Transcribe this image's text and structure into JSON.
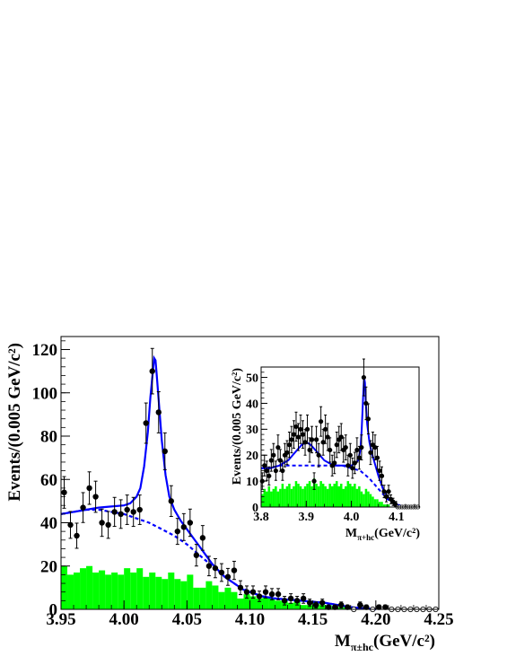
{
  "chart_data": [
    {
      "type": "scatter",
      "xlabel": "M",
      "xlabel_sub": "π±hc",
      "xlabel_unit": "(GeV/c²)",
      "ylabel": "Events/(0.005 GeV/c²)",
      "xlim": [
        3.95,
        4.25
      ],
      "ylim": [
        0,
        126
      ],
      "x_ticks": [
        "3.95",
        "4.00",
        "4.05",
        "4.10",
        "4.15",
        "4.20",
        "4.25"
      ],
      "x_tick_values": [
        3.95,
        4.0,
        4.05,
        4.1,
        4.15,
        4.2,
        4.25
      ],
      "y_ticks": [
        "0",
        "20",
        "40",
        "60",
        "80",
        "100",
        "120"
      ],
      "y_tick_values": [
        0,
        20,
        40,
        60,
        80,
        100,
        120
      ],
      "grid": false,
      "data_points": {
        "x": [
          3.9525,
          3.9575,
          3.9625,
          3.9675,
          3.9725,
          3.9775,
          3.9825,
          3.9875,
          3.9925,
          3.9975,
          4.0025,
          4.0075,
          4.0125,
          4.0175,
          4.0225,
          4.0275,
          4.0325,
          4.0375,
          4.0425,
          4.0475,
          4.0525,
          4.0575,
          4.0625,
          4.0675,
          4.0725,
          4.0775,
          4.0825,
          4.0875,
          4.0925,
          4.0975,
          4.1025,
          4.1075,
          4.1125,
          4.1175,
          4.1225,
          4.1275,
          4.1325,
          4.1375,
          4.1425,
          4.1475,
          4.1525,
          4.1575,
          4.1625,
          4.1675,
          4.1725,
          4.1775,
          4.1825,
          4.1875,
          4.1925,
          4.1975,
          4.2025,
          4.2075,
          4.2125,
          4.2175,
          4.2225,
          4.2275,
          4.2325,
          4.2375,
          4.2425,
          4.2475
        ],
        "y": [
          54,
          39,
          34,
          47,
          56,
          52,
          40,
          39,
          45,
          44,
          46,
          45,
          46,
          86,
          110,
          91,
          73,
          50,
          36,
          38,
          40,
          25,
          33,
          20,
          19,
          17,
          15,
          18,
          10,
          8,
          8,
          6,
          8,
          7,
          7,
          4,
          5,
          4,
          5,
          3,
          2,
          3,
          1,
          1,
          2,
          1,
          0,
          2,
          1,
          0,
          1,
          1,
          0,
          0,
          0,
          0,
          0,
          0,
          0,
          0
        ],
        "yerr": [
          7.3,
          6.2,
          5.8,
          6.9,
          7.5,
          7.2,
          6.3,
          6.2,
          6.7,
          6.6,
          6.8,
          6.7,
          6.8,
          9.3,
          10.5,
          9.5,
          8.5,
          7.1,
          6.0,
          6.2,
          6.3,
          5.0,
          5.7,
          4.5,
          4.4,
          4.1,
          3.9,
          4.2,
          3.2,
          2.8,
          2.8,
          2.4,
          2.8,
          2.6,
          2.6,
          2.0,
          2.2,
          2.0,
          2.2,
          1.7,
          1.4,
          1.7,
          1.0,
          1.0,
          1.4,
          1.0,
          0,
          1.4,
          1.0,
          0,
          1.0,
          1.0,
          0,
          0,
          0,
          0,
          0,
          0,
          0,
          0
        ]
      },
      "fit_total": {
        "x": [
          3.95,
          3.96,
          3.97,
          3.98,
          3.99,
          4.0,
          4.005,
          4.01,
          4.013,
          4.016,
          4.019,
          4.021,
          4.023,
          4.024,
          4.025,
          4.026,
          4.028,
          4.03,
          4.033,
          4.036,
          4.04,
          4.045,
          4.05,
          4.055,
          4.06,
          4.065,
          4.07,
          4.075,
          4.08,
          4.085,
          4.09,
          4.095,
          4.1,
          4.11,
          4.12,
          4.13,
          4.14,
          4.15,
          4.16,
          4.17,
          4.18,
          4.19,
          4.2
        ],
        "y": [
          44,
          45,
          46,
          47,
          47.5,
          48,
          49,
          52,
          56,
          66,
          82,
          98,
          110,
          116,
          115,
          108,
          93,
          78,
          62,
          52,
          46,
          41,
          37,
          33,
          29,
          25,
          21,
          18,
          15,
          13,
          11,
          9,
          8,
          6,
          5,
          4.5,
          4,
          3.5,
          3,
          2,
          1,
          0.5,
          0
        ]
      },
      "fit_background": {
        "x": [
          3.95,
          3.96,
          3.97,
          3.98,
          3.99,
          4.0,
          4.01,
          4.02,
          4.03,
          4.04,
          4.05,
          4.06,
          4.07,
          4.08,
          4.09,
          4.1,
          4.11,
          4.12,
          4.13,
          4.14,
          4.15,
          4.16,
          4.17,
          4.18,
          4.19,
          4.2
        ],
        "y": [
          44,
          45,
          46,
          46,
          45,
          44,
          42,
          40,
          37,
          34,
          30,
          25,
          20,
          15,
          11,
          8,
          6,
          5,
          4.5,
          4,
          3.5,
          3,
          2,
          1,
          0.5,
          0
        ]
      },
      "sideband_histogram": {
        "bin_width": 0.005,
        "bin_starts": [
          3.95,
          3.955,
          3.96,
          3.965,
          3.97,
          3.975,
          3.98,
          3.985,
          3.99,
          3.995,
          4.0,
          4.005,
          4.01,
          4.015,
          4.02,
          4.025,
          4.03,
          4.035,
          4.04,
          4.045,
          4.05,
          4.055,
          4.06,
          4.065,
          4.07,
          4.075,
          4.08,
          4.085,
          4.09,
          4.095,
          4.1,
          4.105,
          4.11,
          4.115,
          4.12,
          4.125,
          4.13,
          4.135,
          4.14,
          4.145,
          4.15,
          4.155,
          4.16,
          4.165,
          4.17,
          4.175,
          4.18,
          4.185,
          4.19,
          4.195
        ],
        "values": [
          20,
          16,
          17,
          19,
          20,
          17,
          18,
          16,
          17,
          16,
          19,
          17,
          19,
          15,
          17,
          15,
          14,
          17,
          14,
          13,
          16,
          10,
          10,
          13,
          11,
          8,
          10,
          8,
          5,
          7,
          6,
          5,
          6,
          5,
          4,
          4,
          3,
          4,
          2,
          2,
          3,
          2,
          2,
          1,
          1,
          1,
          0,
          1,
          0,
          0
        ]
      },
      "colors": {
        "data": "#000000",
        "fit_total": "#0000ff",
        "fit_background": "#0000ff",
        "sideband": "#00ff00"
      }
    },
    {
      "type": "scatter",
      "role": "inset",
      "xlabel": "M",
      "xlabel_sub": "π+hc",
      "xlabel_unit": "(GeV/c²)",
      "ylabel": "Events/(0.005 GeV/c²)",
      "xlim": [
        3.8,
        4.15
      ],
      "ylim": [
        0,
        54
      ],
      "x_ticks": [
        "3.8",
        "3.9",
        "4.0",
        "4.1"
      ],
      "x_tick_values": [
        3.8,
        3.9,
        4.0,
        4.1
      ],
      "y_ticks": [
        "0",
        "10",
        "20",
        "30",
        "40",
        "50"
      ],
      "y_tick_values": [
        0,
        10,
        20,
        30,
        40,
        50
      ],
      "grid": false,
      "data_points": {
        "x": [
          3.8025,
          3.8075,
          3.8125,
          3.8175,
          3.8225,
          3.8275,
          3.8325,
          3.8375,
          3.8425,
          3.8475,
          3.8525,
          3.8575,
          3.8625,
          3.8675,
          3.8725,
          3.8775,
          3.8825,
          3.8875,
          3.8925,
          3.8975,
          3.9025,
          3.9075,
          3.9125,
          3.9175,
          3.9225,
          3.9275,
          3.9325,
          3.9375,
          3.9425,
          3.9475,
          3.9525,
          3.9575,
          3.9625,
          3.9675,
          3.9725,
          3.9775,
          3.9825,
          3.9875,
          3.9925,
          3.9975,
          4.0025,
          4.0075,
          4.0125,
          4.0175,
          4.0225,
          4.0275,
          4.0325,
          4.0375,
          4.0425,
          4.0475,
          4.0525,
          4.0575,
          4.0625,
          4.0675,
          4.0725,
          4.0775,
          4.0825,
          4.0875,
          4.0925,
          4.0975,
          4.1025,
          4.1075,
          4.1125,
          4.1175,
          4.1225,
          4.1275,
          4.1325,
          4.1375,
          4.1425,
          4.1475
        ],
        "y": [
          10,
          16,
          14,
          12,
          18,
          20,
          14,
          23,
          18,
          14,
          20,
          21,
          24,
          26,
          28,
          31,
          27,
          30,
          28,
          25,
          30,
          22,
          26,
          10,
          26,
          20,
          33,
          25,
          30,
          27,
          22,
          16,
          17,
          24,
          26,
          27,
          22,
          23,
          16,
          20,
          15,
          17,
          22,
          19,
          23,
          50,
          40,
          34,
          21,
          24,
          23,
          19,
          14,
          12,
          6,
          4,
          6,
          3,
          2,
          1,
          0,
          0,
          0,
          0,
          0,
          0,
          0,
          0,
          0,
          0
        ],
        "yerr": [
          3.2,
          4.0,
          3.7,
          3.5,
          4.2,
          4.5,
          3.7,
          4.8,
          4.2,
          3.7,
          4.5,
          4.6,
          4.9,
          5.1,
          5.3,
          5.6,
          5.2,
          5.5,
          5.3,
          5.0,
          5.5,
          4.7,
          5.1,
          3.2,
          5.1,
          4.5,
          5.7,
          5.0,
          5.5,
          5.2,
          4.7,
          4.0,
          4.1,
          4.9,
          5.1,
          5.2,
          4.7,
          4.8,
          4.0,
          4.5,
          3.9,
          4.1,
          4.7,
          4.4,
          4.8,
          7.1,
          6.3,
          5.8,
          4.6,
          4.9,
          4.8,
          4.4,
          3.7,
          3.5,
          2.4,
          2.0,
          2.4,
          1.7,
          1.4,
          1.0,
          0,
          0,
          0,
          0,
          0,
          0,
          0,
          0,
          0,
          0
        ]
      },
      "fit_total": {
        "x": [
          3.8,
          3.82,
          3.84,
          3.86,
          3.87,
          3.88,
          3.89,
          3.9,
          3.91,
          3.92,
          3.93,
          3.94,
          3.96,
          3.98,
          4.0,
          4.01,
          4.015,
          4.02,
          4.023,
          4.026,
          4.028,
          4.03,
          4.032,
          4.035,
          4.04,
          4.045,
          4.05,
          4.06,
          4.07,
          4.08,
          4.09,
          4.1,
          4.11,
          4.12
        ],
        "y": [
          15,
          15,
          16,
          18,
          20,
          22,
          24,
          25,
          24,
          22,
          20,
          18,
          16,
          16,
          16,
          17,
          18,
          22,
          30,
          42,
          50,
          48,
          40,
          32,
          25,
          21,
          18,
          12,
          7,
          4,
          2,
          1,
          0,
          0
        ]
      },
      "fit_background": {
        "x": [
          3.8,
          3.82,
          3.84,
          3.86,
          3.88,
          3.9,
          3.92,
          3.94,
          3.96,
          3.98,
          4.0,
          4.02,
          4.04,
          4.06,
          4.08,
          4.1,
          4.12
        ],
        "y": [
          15,
          15,
          16,
          16,
          16,
          16,
          16,
          16,
          16,
          16,
          15,
          14,
          11,
          7,
          3,
          1,
          0
        ]
      },
      "sideband_histogram": {
        "bin_width": 0.005,
        "bin_starts": [
          3.8,
          3.805,
          3.81,
          3.815,
          3.82,
          3.825,
          3.83,
          3.835,
          3.84,
          3.845,
          3.85,
          3.855,
          3.86,
          3.865,
          3.87,
          3.875,
          3.88,
          3.885,
          3.89,
          3.895,
          3.9,
          3.905,
          3.91,
          3.915,
          3.92,
          3.925,
          3.93,
          3.935,
          3.94,
          3.945,
          3.95,
          3.955,
          3.96,
          3.965,
          3.97,
          3.975,
          3.98,
          3.985,
          3.99,
          3.995,
          4.0,
          4.005,
          4.01,
          4.015,
          4.02,
          4.025,
          4.03,
          4.035,
          4.04,
          4.045,
          4.05,
          4.055,
          4.06,
          4.065,
          4.07,
          4.075,
          4.08,
          4.085,
          4.09,
          4.095,
          4.1
        ],
        "values": [
          5,
          7,
          6,
          8,
          6,
          7,
          8,
          6,
          7,
          9,
          7,
          8,
          9,
          7,
          8,
          10,
          9,
          8,
          7,
          8,
          9,
          10,
          8,
          11,
          9,
          8,
          10,
          9,
          8,
          7,
          9,
          8,
          9,
          10,
          8,
          9,
          7,
          8,
          10,
          9,
          8,
          9,
          7,
          8,
          6,
          5,
          7,
          6,
          5,
          4,
          3,
          3,
          2,
          2,
          1,
          1,
          1,
          0,
          0,
          0,
          0
        ],
        "values_note": ""
      },
      "colors": {
        "data": "#000000",
        "fit_total": "#0000ff",
        "fit_background": "#0000ff",
        "sideband": "#00ff00"
      }
    }
  ]
}
